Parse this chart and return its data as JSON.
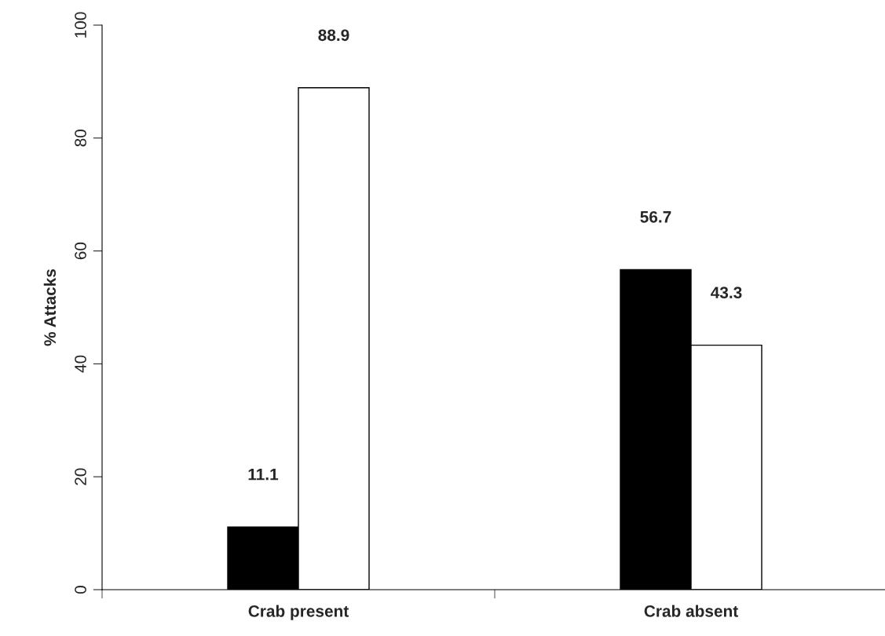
{
  "chart_data": {
    "type": "bar",
    "ylabel": "% Attacks",
    "categories": [
      "Crab present",
      "Crab absent"
    ],
    "series": [
      {
        "color": "#000000",
        "values": [
          11.1,
          56.7
        ]
      },
      {
        "color": "#ffffff",
        "values": [
          88.9,
          43.3
        ]
      }
    ],
    "ylim": [
      0,
      100
    ],
    "yticks": [
      0,
      20,
      40,
      60,
      80,
      100
    ],
    "data_labels": true
  }
}
